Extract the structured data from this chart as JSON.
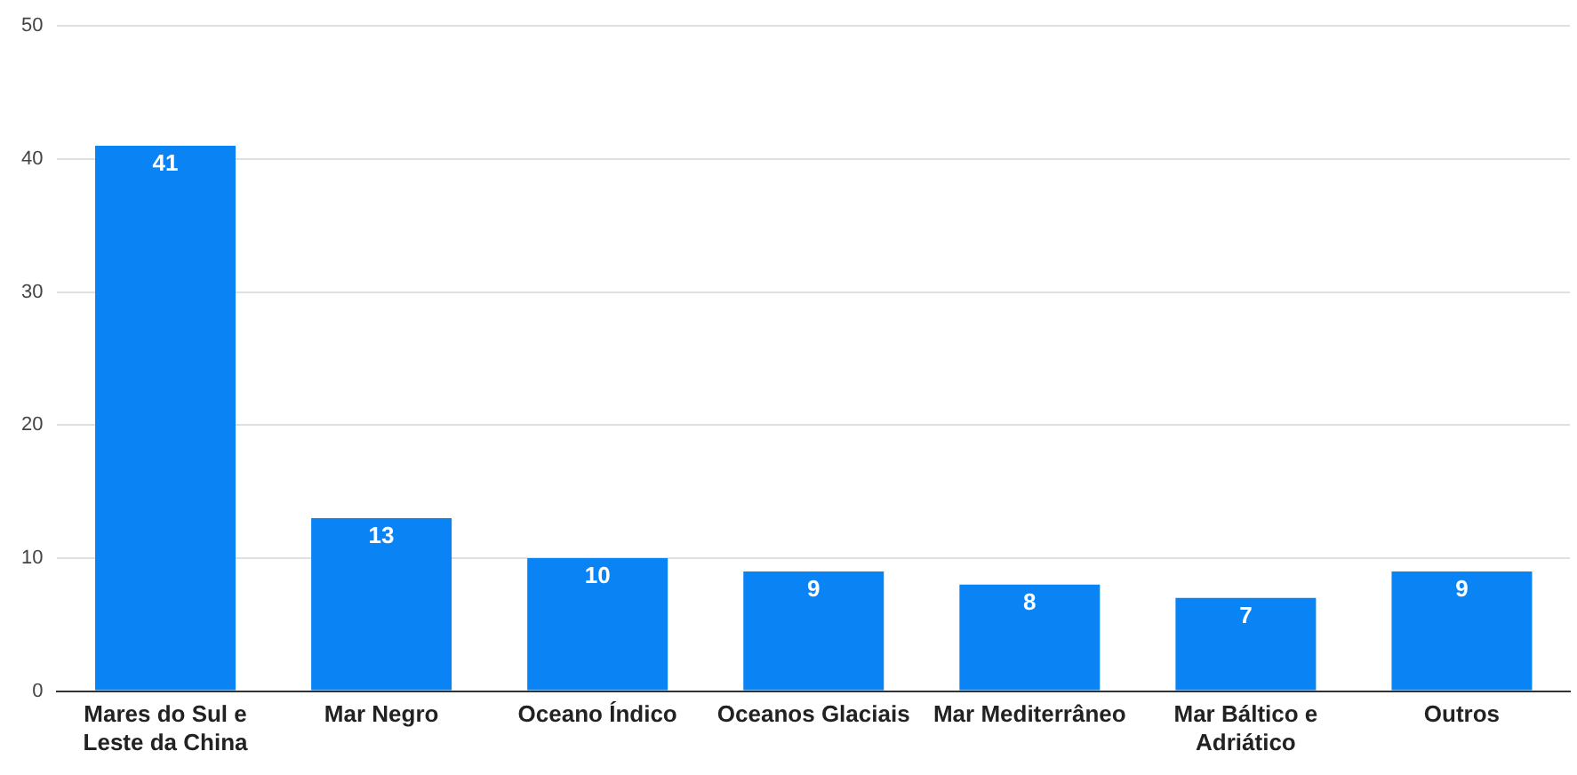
{
  "chart_data": {
    "type": "bar",
    "categories": [
      "Mares do Sul e Leste da China",
      "Mar Negro",
      "Oceano Índico",
      "Oceanos Glaciais",
      "Mar Mediterrâneo",
      "Mar Báltico e Adriático",
      "Outros"
    ],
    "values": [
      41,
      13,
      10,
      9,
      8,
      7,
      9
    ],
    "color": "#0a84f5",
    "ylim": [
      0,
      50
    ],
    "yticks": [
      0,
      10,
      20,
      30,
      40,
      50
    ],
    "grid": "y",
    "legend": false,
    "data_labels": true
  }
}
